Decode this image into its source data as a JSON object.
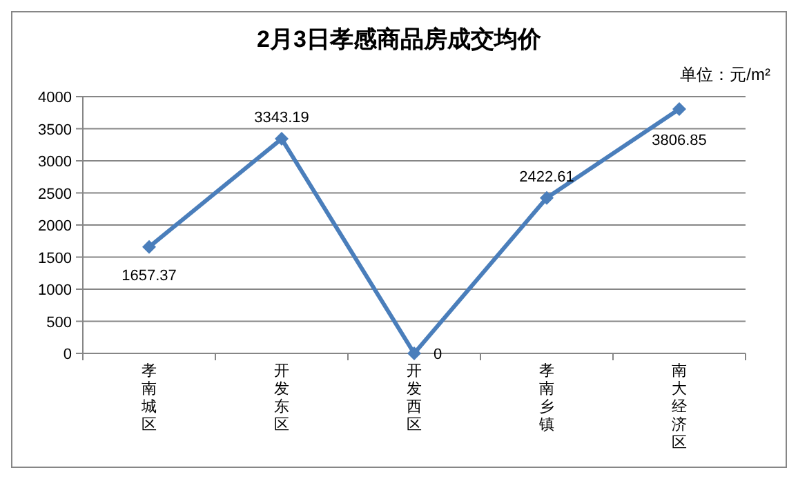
{
  "chart_data": {
    "type": "line",
    "title": "2月3日孝感商品房成交均价",
    "annotations": [
      "单位：元/m²"
    ],
    "categories": [
      "孝南城区",
      "开发东区",
      "开发西区",
      "孝南乡镇",
      "南大经济区"
    ],
    "series": [
      {
        "color": "#4a7ebb",
        "values": [
          1657.37,
          3343.19,
          0,
          2422.61,
          3806.85
        ]
      }
    ],
    "ylim": [
      0,
      4000
    ],
    "yticks": [
      0,
      500,
      1000,
      1500,
      2000,
      2500,
      3000,
      3500,
      4000
    ],
    "grid": "y",
    "marker": "diamond",
    "line_style": "solid",
    "data_labels": true
  }
}
